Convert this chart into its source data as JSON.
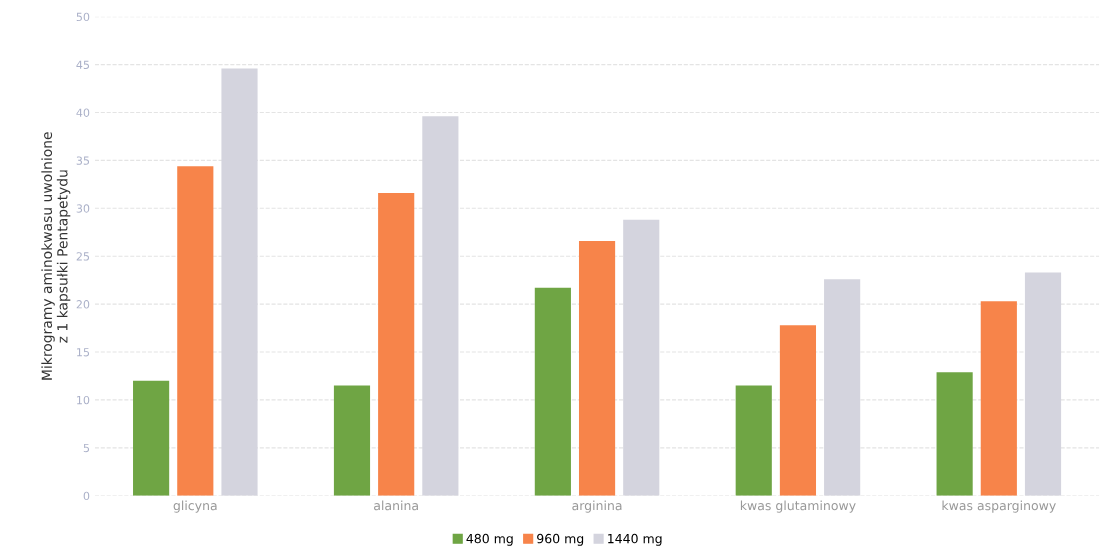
{
  "chart_data": {
    "type": "bar",
    "ylabel": "Mikrogramy aminokwasu uwolnione\nz 1 kapsułki Pentapetydu",
    "categories": [
      "glicyna",
      "alanina",
      "arginina",
      "kwas glutaminowy",
      "kwas asparginowy"
    ],
    "series": [
      {
        "name": "480 mg",
        "color": "#6fa544",
        "values": [
          12,
          11.5,
          21.7,
          11.5,
          12.9
        ]
      },
      {
        "name": "960 mg",
        "color": "#f7844a",
        "values": [
          34.4,
          31.6,
          26.6,
          17.8,
          20.3
        ]
      },
      {
        "name": "1440 mg",
        "color": "#d4d4de",
        "values": [
          44.6,
          39.6,
          28.8,
          22.6,
          23.3
        ]
      }
    ],
    "ylim": [
      0,
      50
    ],
    "yticks": [
      0,
      5,
      10,
      15,
      20,
      25,
      30,
      35,
      40,
      45,
      50
    ],
    "grid": "y",
    "legend": "bottom"
  }
}
